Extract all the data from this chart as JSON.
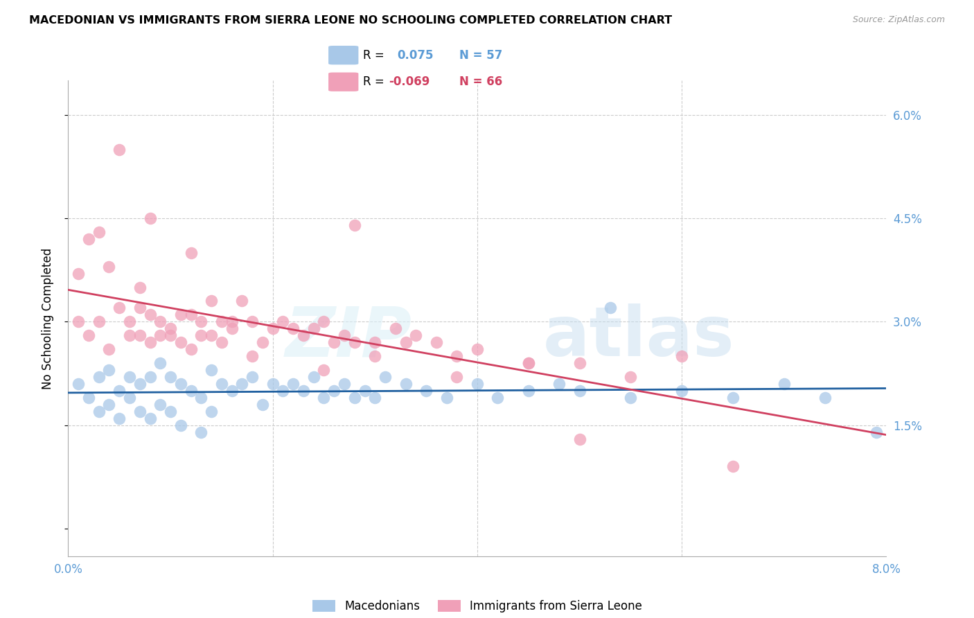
{
  "title": "MACEDONIAN VS IMMIGRANTS FROM SIERRA LEONE NO SCHOOLING COMPLETED CORRELATION CHART",
  "source": "Source: ZipAtlas.com",
  "ylabel": "No Schooling Completed",
  "xlim": [
    0.0,
    0.08
  ],
  "ylim": [
    -0.004,
    0.065
  ],
  "blue_R": 0.075,
  "blue_N": 57,
  "pink_R": -0.069,
  "pink_N": 66,
  "blue_color": "#A8C8E8",
  "pink_color": "#F0A0B8",
  "blue_line_color": "#2060A0",
  "pink_line_color": "#D04060",
  "right_axis_color": "#5B9BD5",
  "legend_label_blue": "Macedonians",
  "legend_label_pink": "Immigrants from Sierra Leone",
  "blue_x": [
    0.001,
    0.002,
    0.003,
    0.003,
    0.004,
    0.004,
    0.005,
    0.005,
    0.006,
    0.006,
    0.007,
    0.007,
    0.008,
    0.008,
    0.009,
    0.009,
    0.01,
    0.01,
    0.011,
    0.011,
    0.012,
    0.013,
    0.013,
    0.014,
    0.014,
    0.015,
    0.016,
    0.017,
    0.018,
    0.019,
    0.02,
    0.021,
    0.022,
    0.023,
    0.024,
    0.025,
    0.026,
    0.027,
    0.028,
    0.029,
    0.03,
    0.031,
    0.033,
    0.035,
    0.037,
    0.04,
    0.042,
    0.045,
    0.048,
    0.05,
    0.053,
    0.055,
    0.06,
    0.065,
    0.07,
    0.074,
    0.079
  ],
  "blue_y": [
    0.021,
    0.019,
    0.022,
    0.017,
    0.023,
    0.018,
    0.02,
    0.016,
    0.022,
    0.019,
    0.021,
    0.017,
    0.022,
    0.016,
    0.024,
    0.018,
    0.022,
    0.017,
    0.021,
    0.015,
    0.02,
    0.019,
    0.014,
    0.023,
    0.017,
    0.021,
    0.02,
    0.021,
    0.022,
    0.018,
    0.021,
    0.02,
    0.021,
    0.02,
    0.022,
    0.019,
    0.02,
    0.021,
    0.019,
    0.02,
    0.019,
    0.022,
    0.021,
    0.02,
    0.019,
    0.021,
    0.019,
    0.02,
    0.021,
    0.02,
    0.032,
    0.019,
    0.02,
    0.019,
    0.021,
    0.019,
    0.014
  ],
  "pink_x": [
    0.001,
    0.001,
    0.002,
    0.002,
    0.003,
    0.003,
    0.004,
    0.004,
    0.005,
    0.005,
    0.006,
    0.006,
    0.007,
    0.007,
    0.007,
    0.008,
    0.008,
    0.009,
    0.009,
    0.01,
    0.01,
    0.011,
    0.011,
    0.012,
    0.012,
    0.013,
    0.013,
    0.014,
    0.014,
    0.015,
    0.015,
    0.016,
    0.016,
    0.017,
    0.018,
    0.019,
    0.02,
    0.021,
    0.022,
    0.023,
    0.024,
    0.025,
    0.026,
    0.027,
    0.028,
    0.03,
    0.032,
    0.034,
    0.036,
    0.038,
    0.04,
    0.045,
    0.05,
    0.055,
    0.06,
    0.065,
    0.028,
    0.033,
    0.038,
    0.045,
    0.05,
    0.018,
    0.012,
    0.008,
    0.025,
    0.03
  ],
  "pink_y": [
    0.037,
    0.03,
    0.042,
    0.028,
    0.043,
    0.03,
    0.038,
    0.026,
    0.055,
    0.032,
    0.028,
    0.03,
    0.032,
    0.028,
    0.035,
    0.031,
    0.027,
    0.03,
    0.028,
    0.028,
    0.029,
    0.031,
    0.027,
    0.031,
    0.026,
    0.03,
    0.028,
    0.033,
    0.028,
    0.03,
    0.027,
    0.029,
    0.03,
    0.033,
    0.03,
    0.027,
    0.029,
    0.03,
    0.029,
    0.028,
    0.029,
    0.03,
    0.027,
    0.028,
    0.027,
    0.027,
    0.029,
    0.028,
    0.027,
    0.025,
    0.026,
    0.024,
    0.024,
    0.022,
    0.025,
    0.009,
    0.044,
    0.027,
    0.022,
    0.024,
    0.013,
    0.025,
    0.04,
    0.045,
    0.023,
    0.025
  ]
}
